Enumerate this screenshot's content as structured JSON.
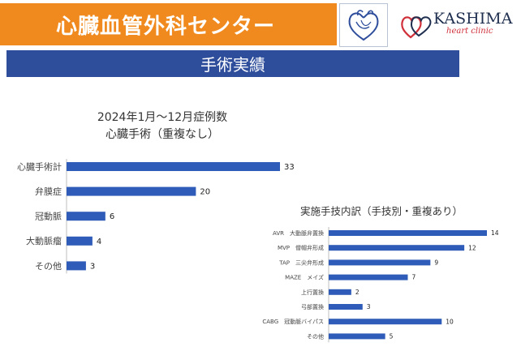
{
  "header": {
    "title": "心臓血管外科センター",
    "brand_name": "KASHIMA",
    "brand_sub": "heart clinic"
  },
  "section": {
    "title": "手術実績"
  },
  "colors": {
    "orange": "#f08a1e",
    "navy": "#2e4e9c",
    "bar": "#2f5cb8"
  },
  "chart_data": [
    {
      "type": "bar",
      "orientation": "horizontal",
      "title": "2024年1月〜12月症例数",
      "subtitle": "心臓手術（重複なし）",
      "categories": [
        "心臓手術計",
        "弁膜症",
        "冠動脈",
        "大動脈瘤",
        "その他"
      ],
      "values": [
        33,
        20,
        6,
        4,
        3
      ],
      "xlim": [
        0,
        33
      ],
      "grid": false
    },
    {
      "type": "bar",
      "orientation": "horizontal",
      "title": "実施手技内訳（手技別・重複あり）",
      "categories": [
        "AVR　大動脈弁置換",
        "MVP　僧帽弁形成",
        "TAP　三尖弁形成",
        "MAZE　メイズ",
        "上行置換",
        "弓部置換",
        "CABG　冠動脈バイパス",
        "その他"
      ],
      "values": [
        14,
        12,
        9,
        7,
        2,
        3,
        10,
        5
      ],
      "xlim": [
        0,
        14
      ],
      "grid": false
    }
  ]
}
